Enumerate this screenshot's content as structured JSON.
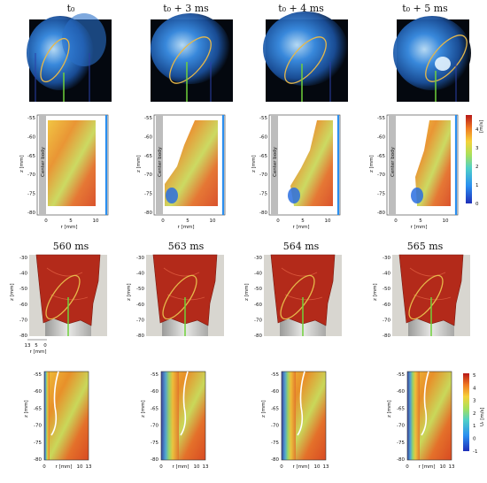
{
  "row1_headers": [
    "t₀",
    "t₀ + 3 ms",
    "t₀ + 4 ms",
    "t₀ + 5 ms"
  ],
  "row3_headers": [
    "560 ms",
    "563 ms",
    "564 ms",
    "565 ms"
  ],
  "piv": {
    "z_label": "z [mm]",
    "r_label": "r [mm]",
    "center_body": "Center body",
    "z_ticks": [
      "-55",
      "-60",
      "-65",
      "-70",
      "-75",
      "-80"
    ],
    "r_ticks": [
      "0",
      "5",
      "10"
    ],
    "colorbar_ticks": [
      "4",
      "3",
      "2",
      "1",
      "0"
    ],
    "colorbar_label": "[m/s]"
  },
  "les3d": {
    "z_label": "z [mm]",
    "r_label": "r [mm]",
    "z_ticks": [
      "-30",
      "-40",
      "-50",
      "-60",
      "-70",
      "-80"
    ],
    "r_ticks": [
      "13",
      "5",
      "0"
    ]
  },
  "les2d": {
    "z_label": "z [mm]",
    "r_label": "r [mm]",
    "z_ticks": [
      "-55",
      "-60",
      "-65",
      "-70",
      "-75",
      "-80"
    ],
    "r_ticks": [
      "0",
      "10",
      "13"
    ],
    "colorbar_ticks": [
      "5",
      "4",
      "3",
      "2",
      "1",
      "0",
      "-1"
    ],
    "colorbar_label": "Uᵣ [m/s]"
  },
  "colors": {
    "flame_blue": "#3a8ee8",
    "ellipse": "#e6b84a",
    "green_line": "#6fd13a",
    "les_red": "#b32a1a",
    "bg_grey": "#d8d6d0"
  }
}
